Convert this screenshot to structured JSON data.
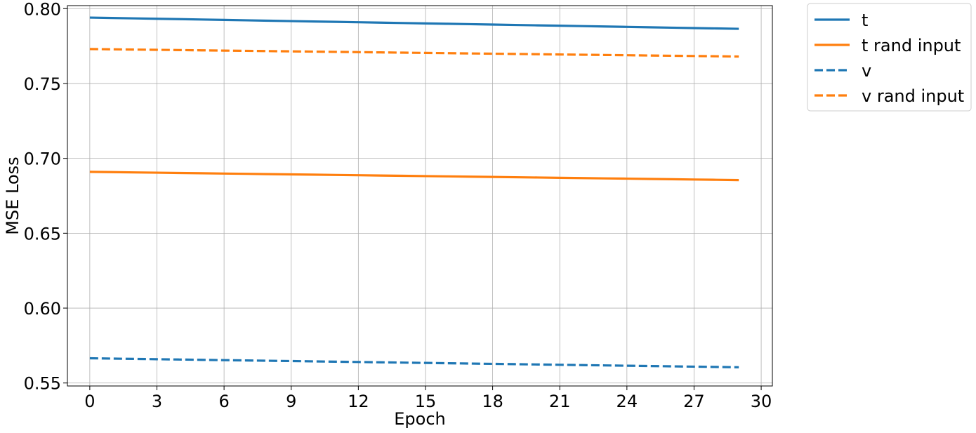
{
  "chart_data": {
    "type": "line",
    "title": "",
    "xlabel": "Epoch",
    "ylabel": "MSE Loss",
    "xlim": [
      -1,
      30.5
    ],
    "ylim": [
      0.548,
      0.802
    ],
    "xticks": [
      0,
      3,
      6,
      9,
      12,
      15,
      18,
      21,
      24,
      27,
      30
    ],
    "yticks": [
      0.55,
      0.6,
      0.65,
      0.7,
      0.75,
      0.8
    ],
    "ytick_labels": [
      "0.55",
      "0.60",
      "0.65",
      "0.70",
      "0.75",
      "0.80"
    ],
    "grid": true,
    "legend_position": "outside-top-right",
    "x_start": 0,
    "x_end": 29,
    "series": [
      {
        "name": "t",
        "color": "#1f77b4",
        "style": "solid",
        "start": 0.794,
        "end": 0.7865
      },
      {
        "name": "t rand input",
        "color": "#ff7f0e",
        "style": "solid",
        "start": 0.691,
        "end": 0.6855
      },
      {
        "name": "v",
        "color": "#1f77b4",
        "style": "dashed",
        "start": 0.5665,
        "end": 0.5605
      },
      {
        "name": "v rand input",
        "color": "#ff7f0e",
        "style": "dashed",
        "start": 0.773,
        "end": 0.768
      }
    ]
  }
}
